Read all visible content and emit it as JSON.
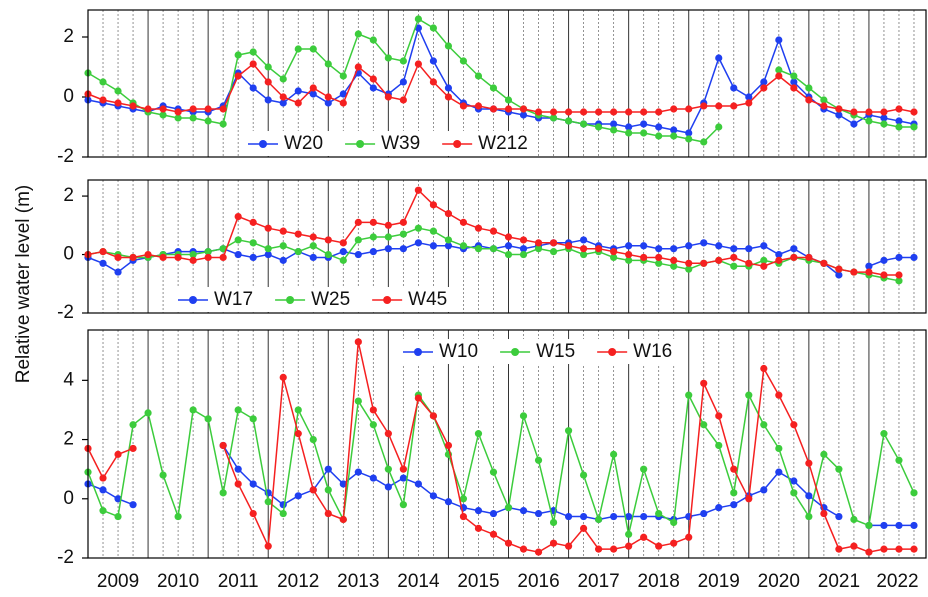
{
  "ylabel": "Relative water level (m)",
  "chart_data": [
    {
      "type": "line",
      "legend": "lower center",
      "show_xtick_labels": false,
      "xlim": [
        2009,
        2022.95
      ],
      "xticks": [
        2009,
        2010,
        2011,
        2012,
        2013,
        2014,
        2015,
        2016,
        2017,
        2018,
        2019,
        2020,
        2021,
        2022
      ],
      "ylim": [
        -2,
        2.9
      ],
      "yticks": [
        -2,
        0,
        2
      ],
      "x": [
        2009,
        2009.25,
        2009.5,
        2009.75,
        2010,
        2010.25,
        2010.5,
        2010.75,
        2011,
        2011.25,
        2011.5,
        2011.75,
        2012,
        2012.25,
        2012.5,
        2012.75,
        2013,
        2013.25,
        2013.5,
        2013.75,
        2014,
        2014.25,
        2014.5,
        2014.75,
        2015,
        2015.25,
        2015.5,
        2015.75,
        2016,
        2016.25,
        2016.5,
        2016.75,
        2017,
        2017.25,
        2017.5,
        2017.75,
        2018,
        2018.25,
        2018.5,
        2018.75,
        2019,
        2019.25,
        2019.5,
        2019.75,
        2020,
        2020.25,
        2020.5,
        2020.75,
        2021,
        2021.25,
        2021.5,
        2021.75,
        2022,
        2022.25,
        2022.5,
        2022.75
      ],
      "series": [
        {
          "name": "W20",
          "color": "#1f3ff0",
          "values": [
            -0.1,
            -0.2,
            -0.3,
            -0.4,
            -0.5,
            -0.3,
            -0.4,
            -0.5,
            -0.5,
            -0.3,
            0.8,
            0.3,
            -0.1,
            -0.2,
            0.2,
            0.1,
            -0.2,
            0.1,
            0.8,
            0.3,
            0.1,
            0.5,
            2.3,
            1.2,
            0.3,
            -0.2,
            -0.4,
            -0.4,
            -0.5,
            -0.6,
            -0.7,
            -0.7,
            -0.8,
            -0.9,
            -0.9,
            -0.9,
            -1.0,
            -0.9,
            -1.0,
            -1.1,
            -1.2,
            -0.2,
            1.3,
            0.3,
            0.0,
            0.5,
            1.9,
            0.5,
            0.0,
            -0.4,
            -0.6,
            -0.9,
            -0.6,
            -0.7,
            -0.8,
            -0.9
          ]
        },
        {
          "name": "W39",
          "color": "#3ccc3c",
          "values": [
            0.8,
            0.5,
            0.2,
            -0.2,
            -0.5,
            -0.6,
            -0.7,
            -0.7,
            -0.8,
            -0.9,
            1.4,
            1.5,
            1.0,
            0.6,
            1.6,
            1.6,
            1.1,
            0.7,
            2.1,
            1.9,
            1.3,
            1.2,
            2.6,
            2.3,
            1.7,
            1.2,
            0.7,
            0.3,
            -0.1,
            -0.4,
            -0.6,
            -0.7,
            -0.8,
            -0.9,
            -1.0,
            -1.1,
            -1.2,
            -1.2,
            -1.3,
            -1.3,
            -1.4,
            -1.5,
            -1.0,
            null,
            null,
            null,
            0.9,
            0.7,
            0.3,
            -0.1,
            -0.4,
            -0.6,
            -0.8,
            -0.9,
            -1.0,
            -1.0
          ]
        },
        {
          "name": "W212",
          "color": "#f52020",
          "values": [
            0.1,
            -0.1,
            -0.2,
            -0.3,
            -0.4,
            -0.4,
            -0.5,
            -0.4,
            -0.4,
            -0.4,
            0.7,
            1.1,
            0.5,
            0.0,
            -0.2,
            0.3,
            0.0,
            -0.2,
            1.0,
            0.6,
            0.0,
            -0.1,
            1.1,
            0.5,
            0.0,
            -0.3,
            -0.3,
            -0.4,
            -0.4,
            -0.4,
            -0.5,
            -0.5,
            -0.5,
            -0.5,
            -0.5,
            -0.5,
            -0.5,
            -0.5,
            -0.5,
            -0.4,
            -0.4,
            -0.3,
            -0.3,
            -0.3,
            -0.2,
            0.3,
            0.7,
            0.3,
            -0.1,
            -0.3,
            -0.4,
            -0.5,
            -0.5,
            -0.5,
            -0.4,
            -0.5
          ]
        }
      ]
    },
    {
      "type": "line",
      "legend": "lower left",
      "show_xtick_labels": false,
      "xlim": [
        2009,
        2022.95
      ],
      "xticks": [
        2009,
        2010,
        2011,
        2012,
        2013,
        2014,
        2015,
        2016,
        2017,
        2018,
        2019,
        2020,
        2021,
        2022
      ],
      "ylim": [
        -2,
        2.55
      ],
      "yticks": [
        -2,
        0,
        2
      ],
      "x": [
        2009,
        2009.25,
        2009.5,
        2009.75,
        2010,
        2010.25,
        2010.5,
        2010.75,
        2011,
        2011.25,
        2011.5,
        2011.75,
        2012,
        2012.25,
        2012.5,
        2012.75,
        2013,
        2013.25,
        2013.5,
        2013.75,
        2014,
        2014.25,
        2014.5,
        2014.75,
        2015,
        2015.25,
        2015.5,
        2015.75,
        2016,
        2016.25,
        2016.5,
        2016.75,
        2017,
        2017.25,
        2017.5,
        2017.75,
        2018,
        2018.25,
        2018.5,
        2018.75,
        2019,
        2019.25,
        2019.5,
        2019.75,
        2020,
        2020.25,
        2020.5,
        2020.75,
        2021,
        2021.25,
        2021.5,
        2021.75,
        2022,
        2022.25,
        2022.5,
        2022.75
      ],
      "series": [
        {
          "name": "W17",
          "color": "#1f3ff0",
          "values": [
            -0.1,
            -0.3,
            -0.6,
            -0.2,
            -0.1,
            0.0,
            0.1,
            0.1,
            0.1,
            0.2,
            0.0,
            -0.1,
            0.0,
            -0.2,
            0.1,
            -0.1,
            -0.1,
            0.1,
            0.0,
            0.1,
            0.2,
            0.2,
            0.4,
            0.3,
            0.3,
            0.2,
            0.3,
            0.2,
            0.3,
            0.2,
            0.3,
            0.4,
            0.4,
            0.5,
            0.3,
            0.2,
            0.3,
            0.3,
            0.2,
            0.2,
            0.3,
            0.4,
            0.3,
            0.2,
            0.2,
            0.3,
            0.0,
            0.2,
            -0.1,
            -0.3,
            -0.7,
            null,
            -0.4,
            -0.2,
            -0.1,
            -0.1
          ]
        },
        {
          "name": "W25",
          "color": "#3ccc3c",
          "values": [
            0.0,
            0.1,
            0.0,
            -0.1,
            -0.1,
            0.0,
            0.0,
            0.0,
            0.1,
            0.2,
            0.5,
            0.4,
            0.2,
            0.3,
            0.1,
            0.3,
            0.0,
            -0.2,
            0.5,
            0.6,
            0.6,
            0.7,
            0.9,
            0.8,
            0.5,
            0.3,
            0.2,
            0.2,
            0.0,
            0.0,
            0.2,
            0.1,
            0.2,
            0.0,
            0.1,
            -0.1,
            -0.2,
            -0.2,
            -0.3,
            -0.4,
            -0.5,
            -0.3,
            -0.2,
            -0.4,
            -0.4,
            -0.2,
            -0.3,
            -0.1,
            -0.2,
            -0.3,
            -0.5,
            -0.6,
            -0.7,
            -0.8,
            -0.9,
            null
          ]
        },
        {
          "name": "W45",
          "color": "#f52020",
          "values": [
            0.0,
            0.1,
            -0.1,
            -0.1,
            0.0,
            -0.1,
            -0.1,
            -0.2,
            -0.1,
            -0.1,
            1.3,
            1.1,
            0.9,
            0.8,
            0.7,
            0.6,
            0.5,
            0.4,
            1.1,
            1.1,
            1.0,
            1.1,
            2.2,
            1.7,
            1.4,
            1.1,
            0.9,
            0.8,
            0.6,
            0.5,
            0.4,
            0.4,
            0.3,
            0.2,
            0.2,
            0.1,
            0.0,
            -0.1,
            -0.1,
            -0.2,
            -0.3,
            -0.3,
            -0.2,
            -0.1,
            -0.3,
            -0.4,
            -0.2,
            -0.1,
            -0.1,
            -0.3,
            -0.5,
            -0.6,
            -0.6,
            -0.7,
            -0.7,
            null
          ]
        }
      ]
    },
    {
      "type": "line",
      "legend": "upper center",
      "show_xtick_labels": true,
      "xlim": [
        2009,
        2022.95
      ],
      "xticks": [
        2009,
        2010,
        2011,
        2012,
        2013,
        2014,
        2015,
        2016,
        2017,
        2018,
        2019,
        2020,
        2021,
        2022
      ],
      "ylim": [
        -2,
        5.7
      ],
      "yticks": [
        -2,
        0,
        2,
        4
      ],
      "x": [
        2009,
        2009.25,
        2009.5,
        2009.75,
        2010,
        2010.25,
        2010.5,
        2010.75,
        2011,
        2011.25,
        2011.5,
        2011.75,
        2012,
        2012.25,
        2012.5,
        2012.75,
        2013,
        2013.25,
        2013.5,
        2013.75,
        2014,
        2014.25,
        2014.5,
        2014.75,
        2015,
        2015.25,
        2015.5,
        2015.75,
        2016,
        2016.25,
        2016.5,
        2016.75,
        2017,
        2017.25,
        2017.5,
        2017.75,
        2018,
        2018.25,
        2018.5,
        2018.75,
        2019,
        2019.25,
        2019.5,
        2019.75,
        2020,
        2020.25,
        2020.5,
        2020.75,
        2021,
        2021.25,
        2021.5,
        2021.75,
        2022,
        2022.25,
        2022.5,
        2022.75
      ],
      "series": [
        {
          "name": "W10",
          "color": "#1f3ff0",
          "values": [
            0.5,
            0.3,
            0.0,
            -0.2,
            null,
            null,
            null,
            null,
            null,
            1.8,
            1.0,
            0.5,
            0.2,
            -0.2,
            0.1,
            0.3,
            1.0,
            0.5,
            0.9,
            0.7,
            0.4,
            0.7,
            0.5,
            0.1,
            -0.1,
            -0.3,
            -0.4,
            -0.5,
            -0.3,
            -0.4,
            -0.5,
            -0.4,
            -0.6,
            -0.6,
            -0.7,
            -0.6,
            -0.6,
            -0.6,
            -0.6,
            -0.7,
            -0.6,
            -0.5,
            -0.3,
            -0.2,
            0.1,
            0.3,
            0.9,
            0.6,
            0.1,
            -0.3,
            -0.6,
            null,
            -0.9,
            -0.9,
            -0.9,
            -0.9
          ]
        },
        {
          "name": "W15",
          "color": "#3ccc3c",
          "values": [
            0.9,
            -0.4,
            -0.6,
            2.5,
            2.9,
            0.8,
            -0.6,
            3.0,
            2.7,
            0.2,
            3.0,
            2.7,
            -0.1,
            -0.5,
            3.0,
            2.0,
            0.3,
            -0.7,
            3.3,
            2.5,
            1.0,
            -0.2,
            3.5,
            2.8,
            1.5,
            0.0,
            2.2,
            0.9,
            -0.3,
            2.8,
            1.3,
            -0.8,
            2.3,
            0.8,
            -0.7,
            1.5,
            -1.2,
            1.0,
            -0.5,
            -0.8,
            3.5,
            2.5,
            1.8,
            0.2,
            3.5,
            2.5,
            1.7,
            0.2,
            -0.6,
            1.5,
            1.0,
            -0.7,
            -0.9,
            2.2,
            1.3,
            0.2
          ]
        },
        {
          "name": "W16",
          "color": "#f52020",
          "values": [
            1.7,
            0.7,
            1.5,
            1.7,
            null,
            null,
            null,
            null,
            null,
            1.8,
            0.5,
            -0.5,
            -1.6,
            4.1,
            2.2,
            0.3,
            -0.5,
            -0.7,
            5.3,
            3.0,
            2.2,
            1.0,
            3.4,
            2.8,
            1.8,
            -0.6,
            -1.0,
            -1.2,
            -1.5,
            -1.7,
            -1.8,
            -1.5,
            -1.6,
            -1.0,
            -1.7,
            -1.7,
            -1.6,
            -1.3,
            -1.6,
            -1.5,
            -1.3,
            3.9,
            2.8,
            1.0,
            0.0,
            4.4,
            3.5,
            2.5,
            1.2,
            -0.5,
            -1.7,
            -1.6,
            -1.8,
            -1.7,
            -1.7,
            -1.7
          ]
        }
      ]
    }
  ]
}
